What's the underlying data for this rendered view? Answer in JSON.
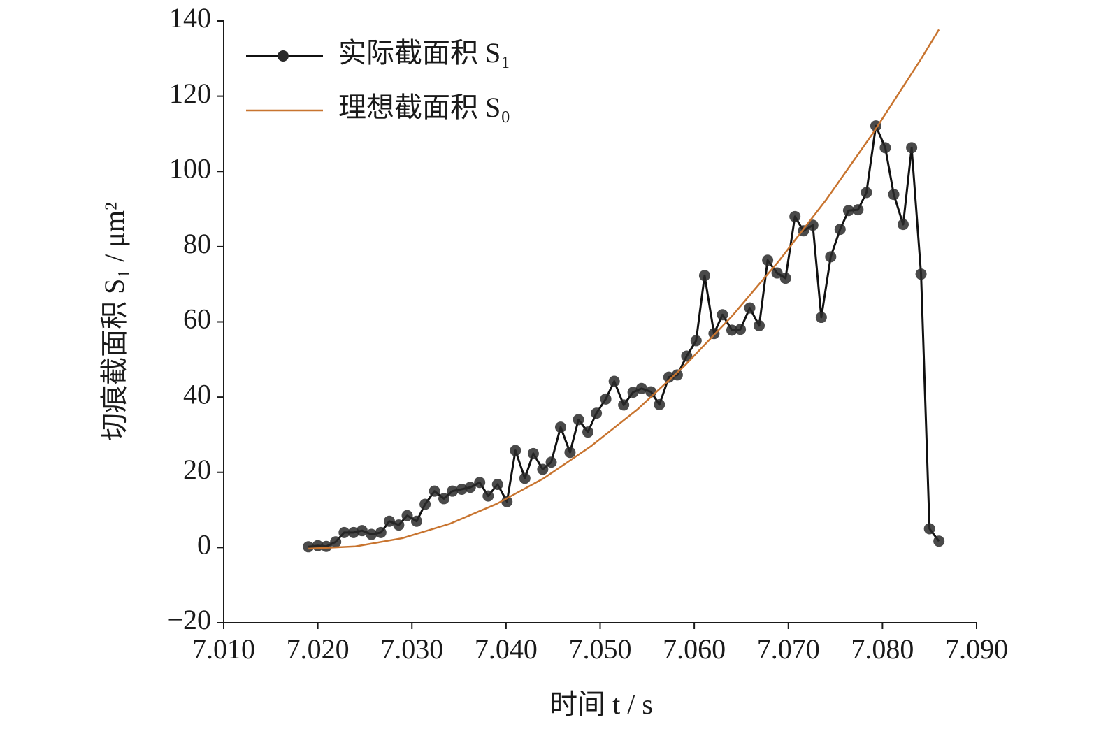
{
  "chart_data": {
    "type": "line",
    "xlabel": "时间 t / s",
    "ylabel": "切痕截面积 S₁ / μm²",
    "xlim": [
      7.01,
      7.09
    ],
    "xticks": [
      {
        "value": 7.01,
        "label": "7.010"
      },
      {
        "value": 7.02,
        "label": "7.020"
      },
      {
        "value": 7.03,
        "label": "7.030"
      },
      {
        "value": 7.04,
        "label": "7.040"
      },
      {
        "value": 7.05,
        "label": "7.050"
      },
      {
        "value": 7.06,
        "label": "7.060"
      },
      {
        "value": 7.07,
        "label": "7.070"
      },
      {
        "value": 7.08,
        "label": "7.080"
      },
      {
        "value": 7.09,
        "label": "7.090"
      }
    ],
    "ylim": [
      -20,
      140
    ],
    "yticks": [
      {
        "value": -20,
        "label": "−20"
      },
      0,
      20,
      40,
      60,
      80,
      100,
      120,
      140
    ],
    "legend": "upper left",
    "series": [
      {
        "name": "实际截面积 S₁",
        "color": "#111111",
        "marker": true,
        "x": [
          7.019,
          7.02,
          7.0209,
          7.0219,
          7.0228,
          7.0238,
          7.0247,
          7.0257,
          7.0267,
          7.0276,
          7.0286,
          7.0295,
          7.0305,
          7.0314,
          7.0324,
          7.0334,
          7.0343,
          7.0353,
          7.0362,
          7.0372,
          7.0381,
          7.0391,
          7.0401,
          7.041,
          7.042,
          7.0429,
          7.0439,
          7.0448,
          7.0458,
          7.0468,
          7.0477,
          7.0487,
          7.0496,
          7.0506,
          7.0515,
          7.0525,
          7.0535,
          7.0544,
          7.0554,
          7.0563,
          7.0573,
          7.0582,
          7.0592,
          7.0602,
          7.0611,
          7.0621,
          7.063,
          7.064,
          7.0649,
          7.0659,
          7.0669,
          7.0678,
          7.0688,
          7.0697,
          7.0707,
          7.0716,
          7.0726,
          7.0735,
          7.0745,
          7.0755,
          7.0764,
          7.0774,
          7.0783,
          7.0793,
          7.0803,
          7.0812,
          7.0822,
          7.0831,
          7.0841,
          7.085,
          7.086
        ],
        "values": [
          0.2,
          0.5,
          0.3,
          1.5,
          4,
          4,
          4.5,
          3.5,
          4,
          7,
          6,
          8.5,
          7,
          11.5,
          15,
          13,
          15,
          15.5,
          16,
          17.3,
          13.7,
          16.8,
          12.2,
          25.8,
          18.4,
          25,
          20.8,
          22.7,
          32,
          25.3,
          34,
          30.7,
          35.7,
          39.5,
          44.2,
          37.9,
          41.3,
          42.3,
          41.4,
          38,
          45.3,
          45.9,
          50.9,
          55,
          72.3,
          56.9,
          61.9,
          57.8,
          58,
          63.7,
          59,
          76.4,
          73,
          71.6,
          88,
          84.2,
          85.7,
          61.2,
          77.3,
          84.6,
          89.6,
          89.8,
          94.4,
          112.1,
          106.3,
          93.9,
          85.9,
          106.3,
          72.7,
          5,
          1.7
        ]
      },
      {
        "name": "理想截面积 S₀",
        "color": "#c8742f",
        "marker": false,
        "x": [
          7.019,
          7.024,
          7.029,
          7.034,
          7.039,
          7.044,
          7.049,
          7.054,
          7.059,
          7.064,
          7.069,
          7.074,
          7.079,
          7.084,
          7.086
        ],
        "values": [
          -0.3,
          0.3,
          2.5,
          6.3,
          11.6,
          18.4,
          26.9,
          36.8,
          48.4,
          61.5,
          76.2,
          92.4,
          110.2,
          129.5,
          137.7
        ]
      }
    ]
  }
}
